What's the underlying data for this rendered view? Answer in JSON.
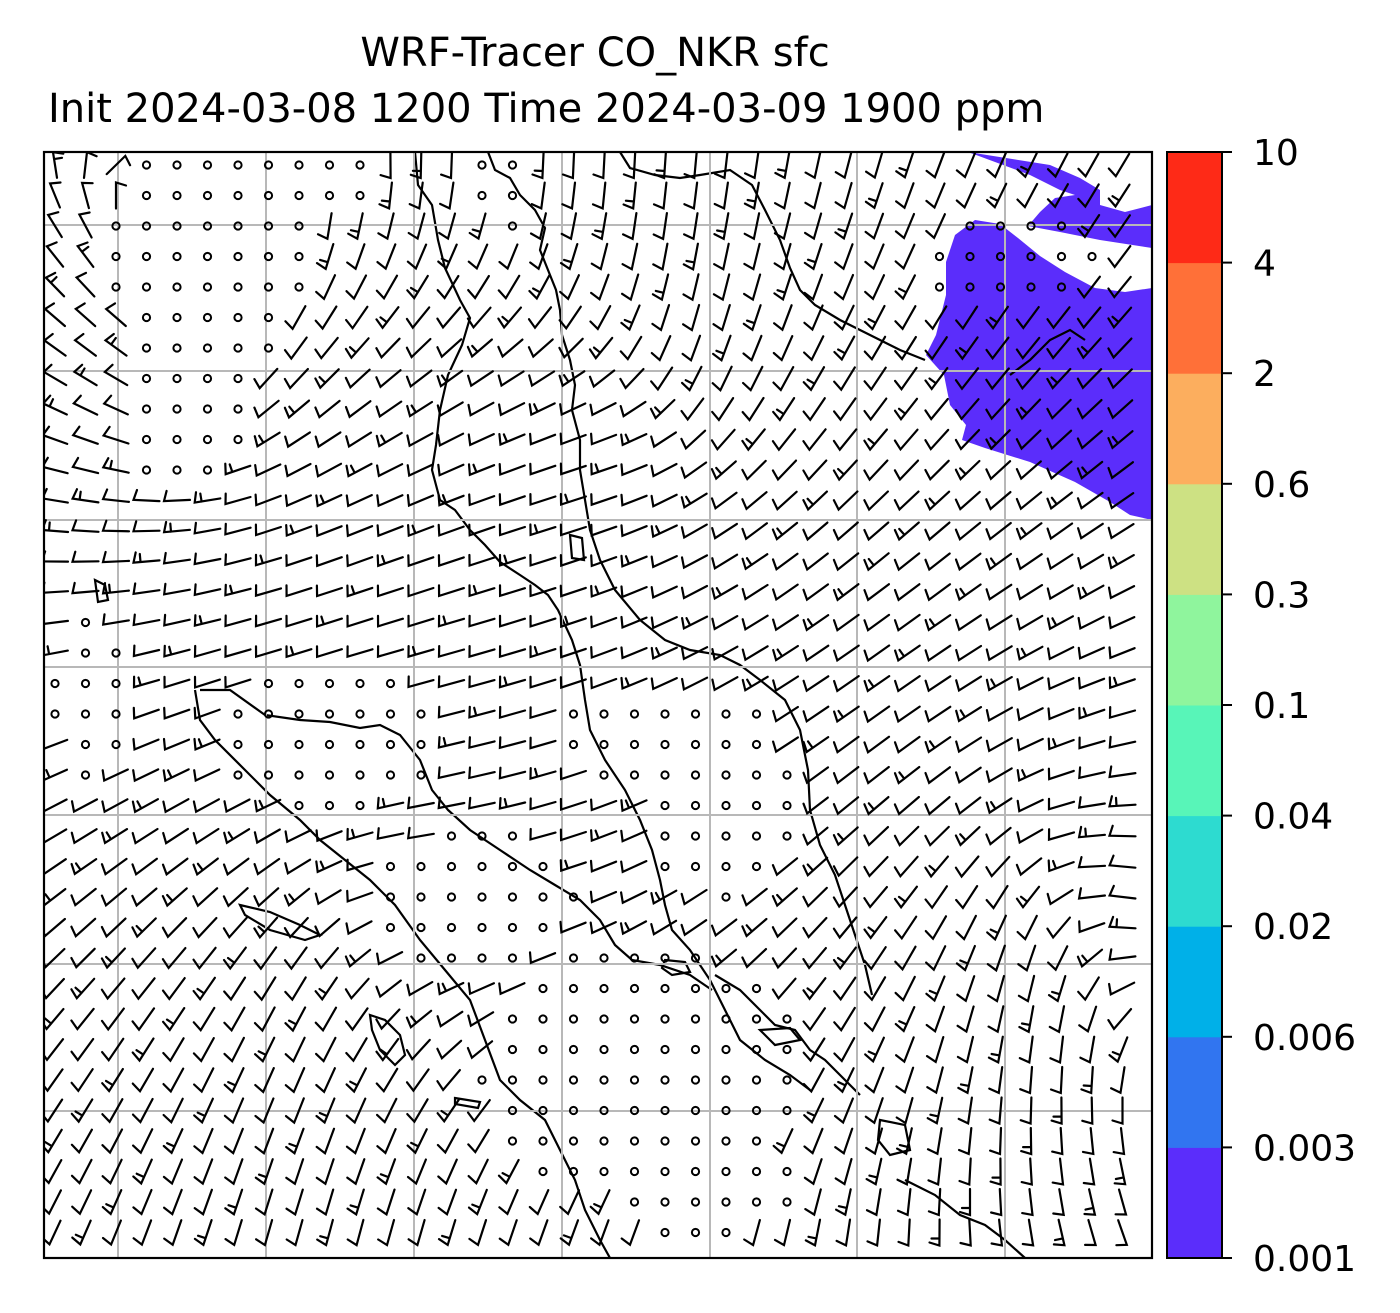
{
  "title": {
    "line1": "WRF-Tracer CO_NKR sfc",
    "line2": "Init 2024-03-08 1200 Time 2024-03-09 1900 ppm"
  },
  "colorbar": {
    "levels": [
      "0.001",
      "0.003",
      "0.006",
      "0.02",
      "0.04",
      "0.1",
      "0.3",
      "0.6",
      "2",
      "4",
      "10"
    ],
    "colors": [
      "#5b2dfb",
      "#3175f0",
      "#00b0e8",
      "#2ddbd0",
      "#58f5b8",
      "#8ff59d",
      "#cde183",
      "#fcae5e",
      "#ff7038",
      "#fe2a17"
    ]
  },
  "map": {
    "plume_color": "#5b2dfb",
    "grid_color": "#b8b8b8",
    "grid_columns": 7,
    "grid_rows": 7
  }
}
